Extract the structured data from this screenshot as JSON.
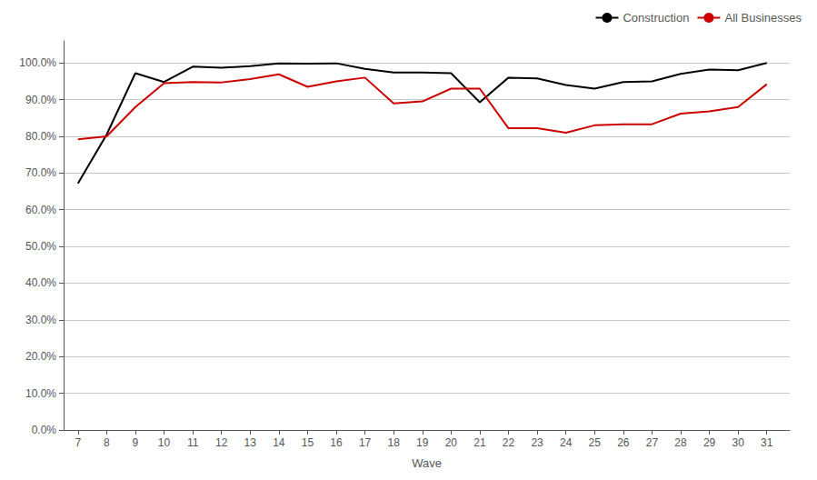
{
  "chart_data": {
    "type": "line",
    "xlabel": "Wave",
    "x": [
      7,
      8,
      9,
      10,
      11,
      12,
      13,
      14,
      15,
      16,
      17,
      18,
      19,
      20,
      21,
      22,
      23,
      24,
      25,
      26,
      27,
      28,
      29,
      30,
      31
    ],
    "series": [
      {
        "name": "Construction",
        "color": "#000000",
        "values": [
          0.672,
          0.805,
          0.972,
          0.948,
          0.99,
          0.987,
          0.991,
          0.999,
          0.998,
          0.999,
          0.984,
          0.974,
          0.974,
          0.972,
          0.893,
          0.96,
          0.958,
          0.94,
          0.93,
          0.948,
          0.95,
          0.97,
          0.982,
          0.98,
          1.0
        ]
      },
      {
        "name": "All Businesses",
        "color": "#cc0000",
        "values": [
          0.792,
          0.8,
          0.88,
          0.945,
          0.948,
          0.947,
          0.956,
          0.969,
          0.935,
          0.95,
          0.96,
          0.89,
          0.895,
          0.93,
          0.93,
          0.822,
          0.822,
          0.81,
          0.83,
          0.833,
          0.833,
          0.862,
          0.868,
          0.88,
          0.942
        ]
      }
    ],
    "xlim": [
      6.5,
      31.8
    ],
    "xticks": [
      7,
      8,
      9,
      10,
      11,
      12,
      13,
      14,
      15,
      16,
      17,
      18,
      19,
      20,
      21,
      22,
      23,
      24,
      25,
      26,
      27,
      28,
      29,
      30,
      31
    ],
    "ylim": [
      0.0,
      1.06
    ],
    "yticks": [
      {
        "value": 0.0,
        "label": "0.0%"
      },
      {
        "value": 0.1,
        "label": "10.0%"
      },
      {
        "value": 0.2,
        "label": "20.0%"
      },
      {
        "value": 0.3,
        "label": "30.0%"
      },
      {
        "value": 0.4,
        "label": "40.0%"
      },
      {
        "value": 0.5,
        "label": "50.0%"
      },
      {
        "value": 0.6,
        "label": "60.0%"
      },
      {
        "value": 0.7,
        "label": "70.0%"
      },
      {
        "value": 0.8,
        "label": "80.0%"
      },
      {
        "value": 0.9,
        "label": "90.0%"
      },
      {
        "value": 1.0,
        "label": "100.0%"
      }
    ],
    "grid": true,
    "legend": "upper right"
  }
}
